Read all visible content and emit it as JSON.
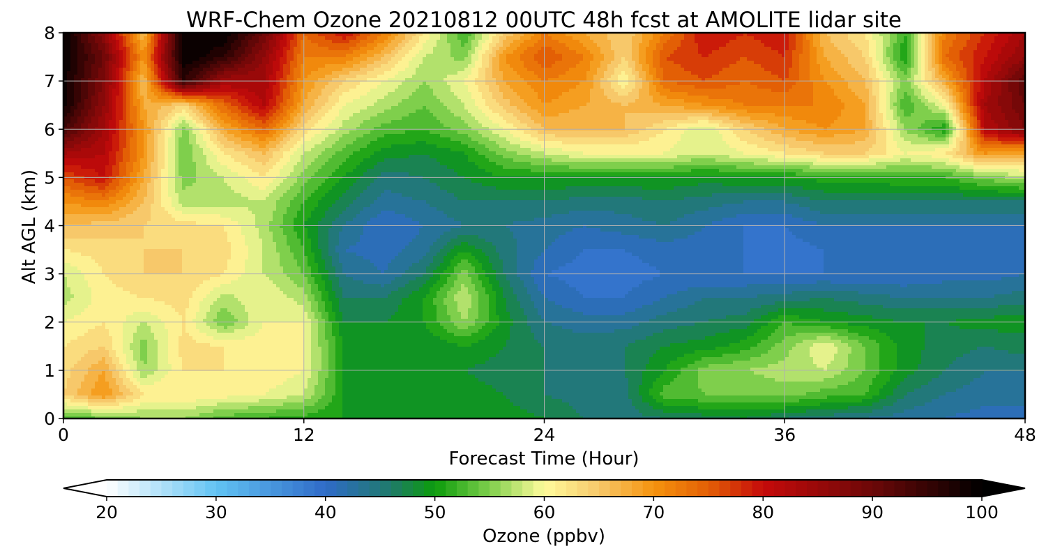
{
  "chart_data": {
    "type": "heatmap",
    "title": "WRF-Chem Ozone  20210812 00UTC 48h fcst at AMOLITE lidar site",
    "xlabel": "Forecast Time (Hour)",
    "ylabel": "Alt AGL (km)",
    "xlim": [
      0,
      48
    ],
    "ylim": [
      0,
      8
    ],
    "xticks": [
      0,
      12,
      24,
      36,
      48
    ],
    "yticks": [
      0,
      1,
      2,
      3,
      4,
      5,
      6,
      7,
      8
    ],
    "grid": true,
    "x": [
      0,
      2,
      4,
      6,
      8,
      10,
      12,
      14,
      16,
      18,
      20,
      22,
      24,
      26,
      28,
      30,
      32,
      34,
      36,
      38,
      40,
      42,
      44,
      46,
      48
    ],
    "y": [
      0,
      0.5,
      1,
      1.5,
      2,
      2.5,
      3,
      3.5,
      4,
      4.5,
      5,
      5.5,
      6,
      6.5,
      7,
      7.5,
      8
    ],
    "z": [
      [
        53,
        54,
        56,
        56,
        53,
        52,
        51,
        50,
        50,
        50,
        50,
        49,
        48,
        46,
        45,
        46,
        47,
        48,
        46,
        45,
        44,
        43,
        42,
        41,
        41
      ],
      [
        64,
        70,
        62,
        62,
        61,
        60,
        58,
        50,
        49,
        49,
        49,
        48,
        46,
        45,
        45,
        53,
        54,
        54,
        55,
        53,
        52,
        46,
        44,
        43,
        43
      ],
      [
        63,
        68,
        56,
        62,
        62,
        62,
        60,
        50,
        49,
        48,
        48,
        47,
        46,
        45,
        46,
        50,
        55,
        56,
        57,
        58,
        54,
        49,
        46,
        44,
        44
      ],
      [
        62,
        64,
        55,
        63,
        62,
        61,
        60,
        50,
        49,
        48,
        50,
        48,
        46,
        45,
        46,
        48,
        49,
        51,
        55,
        60,
        54,
        49,
        47,
        46,
        47
      ],
      [
        60,
        62,
        58,
        62,
        54,
        60,
        60,
        48,
        48,
        50,
        56,
        49,
        44,
        43,
        43,
        45,
        46,
        47,
        52,
        50,
        49,
        48,
        48,
        49,
        49
      ],
      [
        57,
        61,
        62,
        63,
        57,
        60,
        57,
        46,
        46,
        50,
        58,
        48,
        42,
        40,
        40,
        42,
        44,
        44,
        45,
        46,
        45,
        44,
        44,
        44,
        45
      ],
      [
        58,
        62,
        64,
        64,
        62,
        58,
        54,
        44,
        42,
        46,
        55,
        46,
        40,
        39,
        39,
        40,
        40,
        40,
        40,
        40,
        40,
        40,
        41,
        41,
        42
      ],
      [
        62,
        63,
        64,
        64,
        63,
        58,
        52,
        42,
        41,
        43,
        50,
        45,
        42,
        40,
        40,
        41,
        41,
        40,
        39,
        40,
        40,
        40,
        41,
        41,
        42
      ],
      [
        66,
        65,
        64,
        63,
        62,
        57,
        50,
        44,
        40,
        42,
        44,
        44,
        43,
        42,
        43,
        44,
        42,
        40,
        40,
        42,
        42,
        42,
        42,
        42,
        42
      ],
      [
        70,
        72,
        66,
        57,
        57,
        58,
        52,
        47,
        43,
        44,
        46,
        46,
        46,
        45,
        45,
        46,
        45,
        44,
        44,
        46,
        46,
        46,
        46,
        46,
        46
      ],
      [
        76,
        80,
        68,
        55,
        58,
        62,
        55,
        50,
        45,
        46,
        48,
        50,
        50,
        50,
        50,
        50,
        49,
        50,
        50,
        51,
        51,
        52,
        52,
        55,
        57
      ],
      [
        84,
        82,
        70,
        54,
        62,
        66,
        58,
        53,
        49,
        48,
        50,
        55,
        58,
        60,
        60,
        60,
        58,
        60,
        62,
        64,
        64,
        60,
        62,
        70,
        68
      ],
      [
        94,
        84,
        70,
        55,
        68,
        74,
        63,
        57,
        53,
        52,
        55,
        60,
        66,
        66,
        66,
        62,
        58,
        64,
        68,
        70,
        68,
        56,
        50,
        82,
        88
      ],
      [
        99,
        86,
        68,
        64,
        74,
        82,
        68,
        60,
        57,
        54,
        58,
        65,
        70,
        68,
        66,
        68,
        70,
        72,
        72,
        72,
        68,
        52,
        60,
        84,
        90
      ],
      [
        99,
        88,
        66,
        96,
        84,
        84,
        70,
        64,
        60,
        56,
        60,
        68,
        72,
        70,
        60,
        74,
        76,
        74,
        76,
        70,
        66,
        55,
        68,
        82,
        92
      ],
      [
        100,
        90,
        70,
        100,
        96,
        86,
        72,
        72,
        66,
        58,
        55,
        70,
        76,
        72,
        64,
        76,
        78,
        76,
        78,
        68,
        64,
        50,
        74,
        80,
        86
      ],
      [
        100,
        86,
        66,
        100,
        100,
        90,
        74,
        80,
        72,
        62,
        52,
        64,
        72,
        68,
        64,
        72,
        80,
        78,
        80,
        66,
        62,
        52,
        72,
        78,
        84
      ]
    ],
    "colorbar": {
      "label": "Ozone  (ppbv)",
      "min": 20,
      "max": 100,
      "ticks": [
        20,
        30,
        40,
        50,
        60,
        70,
        80,
        90,
        100
      ],
      "extend": "both",
      "stops": [
        {
          "v": 20,
          "c": "#ffffff"
        },
        {
          "v": 30,
          "c": "#62c3f3"
        },
        {
          "v": 40,
          "c": "#2f6bc8"
        },
        {
          "v": 46,
          "c": "#1f7a6a"
        },
        {
          "v": 50,
          "c": "#0b9c0b"
        },
        {
          "v": 55,
          "c": "#7fcf4c"
        },
        {
          "v": 60,
          "c": "#fffb9c"
        },
        {
          "v": 65,
          "c": "#f7c86a"
        },
        {
          "v": 70,
          "c": "#f5930e"
        },
        {
          "v": 75,
          "c": "#e35f05"
        },
        {
          "v": 80,
          "c": "#c50a0a"
        },
        {
          "v": 90,
          "c": "#6c0808"
        },
        {
          "v": 100,
          "c": "#000000"
        }
      ]
    }
  }
}
